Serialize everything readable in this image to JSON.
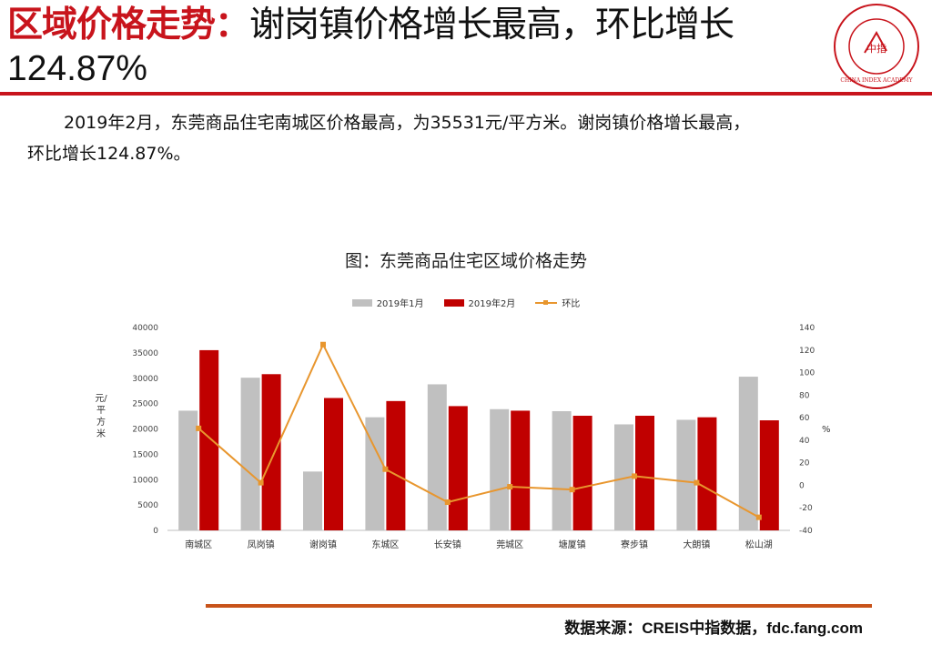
{
  "header": {
    "title_accent": "区域价格走势：",
    "title_rest": "谢岗镇价格增长最高，环比增长",
    "title_line2": "124.87%",
    "logo_text": "CHINA INDEX ACADEMY",
    "logo_center": "中指"
  },
  "description": {
    "line1": "2019年2月，东莞商品住宅南城区价格最高，为35531元/平方米。谢岗镇价格增长最高，",
    "line2": "环比增长124.87%。"
  },
  "colors": {
    "accent": "#c8141c",
    "series1": "#c0c0c0",
    "series2": "#c00000",
    "line": "#e8962e",
    "rule_bottom": "#c8531a"
  },
  "chart_data": {
    "type": "bar",
    "title": "图：东莞商品住宅区域价格走势",
    "categories": [
      "南城区",
      "凤岗镇",
      "谢岗镇",
      "东城区",
      "长安镇",
      "莞城区",
      "塘厦镇",
      "寮步镇",
      "大朗镇",
      "松山湖"
    ],
    "series": [
      {
        "name": "2019年1月",
        "type": "bar",
        "axis": "left",
        "values": [
          23600,
          30100,
          11600,
          22300,
          28800,
          23900,
          23500,
          20900,
          21800,
          30300
        ]
      },
      {
        "name": "2019年2月",
        "type": "bar",
        "axis": "left",
        "values": [
          35531,
          30800,
          26100,
          25500,
          24500,
          23600,
          22600,
          22600,
          22300,
          21700
        ]
      },
      {
        "name": "环比",
        "type": "line",
        "axis": "right",
        "values": [
          50.5,
          2.3,
          124.87,
          14.3,
          -15.0,
          -1.3,
          -3.8,
          8.1,
          2.3,
          -28.4
        ]
      }
    ],
    "ylabel": "元/平方米",
    "y2label": "%",
    "ylim": [
      0,
      40000
    ],
    "y2lim": [
      -40,
      140
    ],
    "yticks": [
      "0",
      "5000",
      "10000",
      "15000",
      "20000",
      "25000",
      "30000",
      "35000",
      "40000"
    ],
    "y2ticks": [
      "-40",
      "-20",
      "0",
      "20",
      "40",
      "60",
      "80",
      "100",
      "120",
      "140"
    ],
    "legend_position": "top-center",
    "grid": false
  },
  "footer": {
    "source": "数据来源：CREIS中指数据，fdc.fang.com"
  }
}
